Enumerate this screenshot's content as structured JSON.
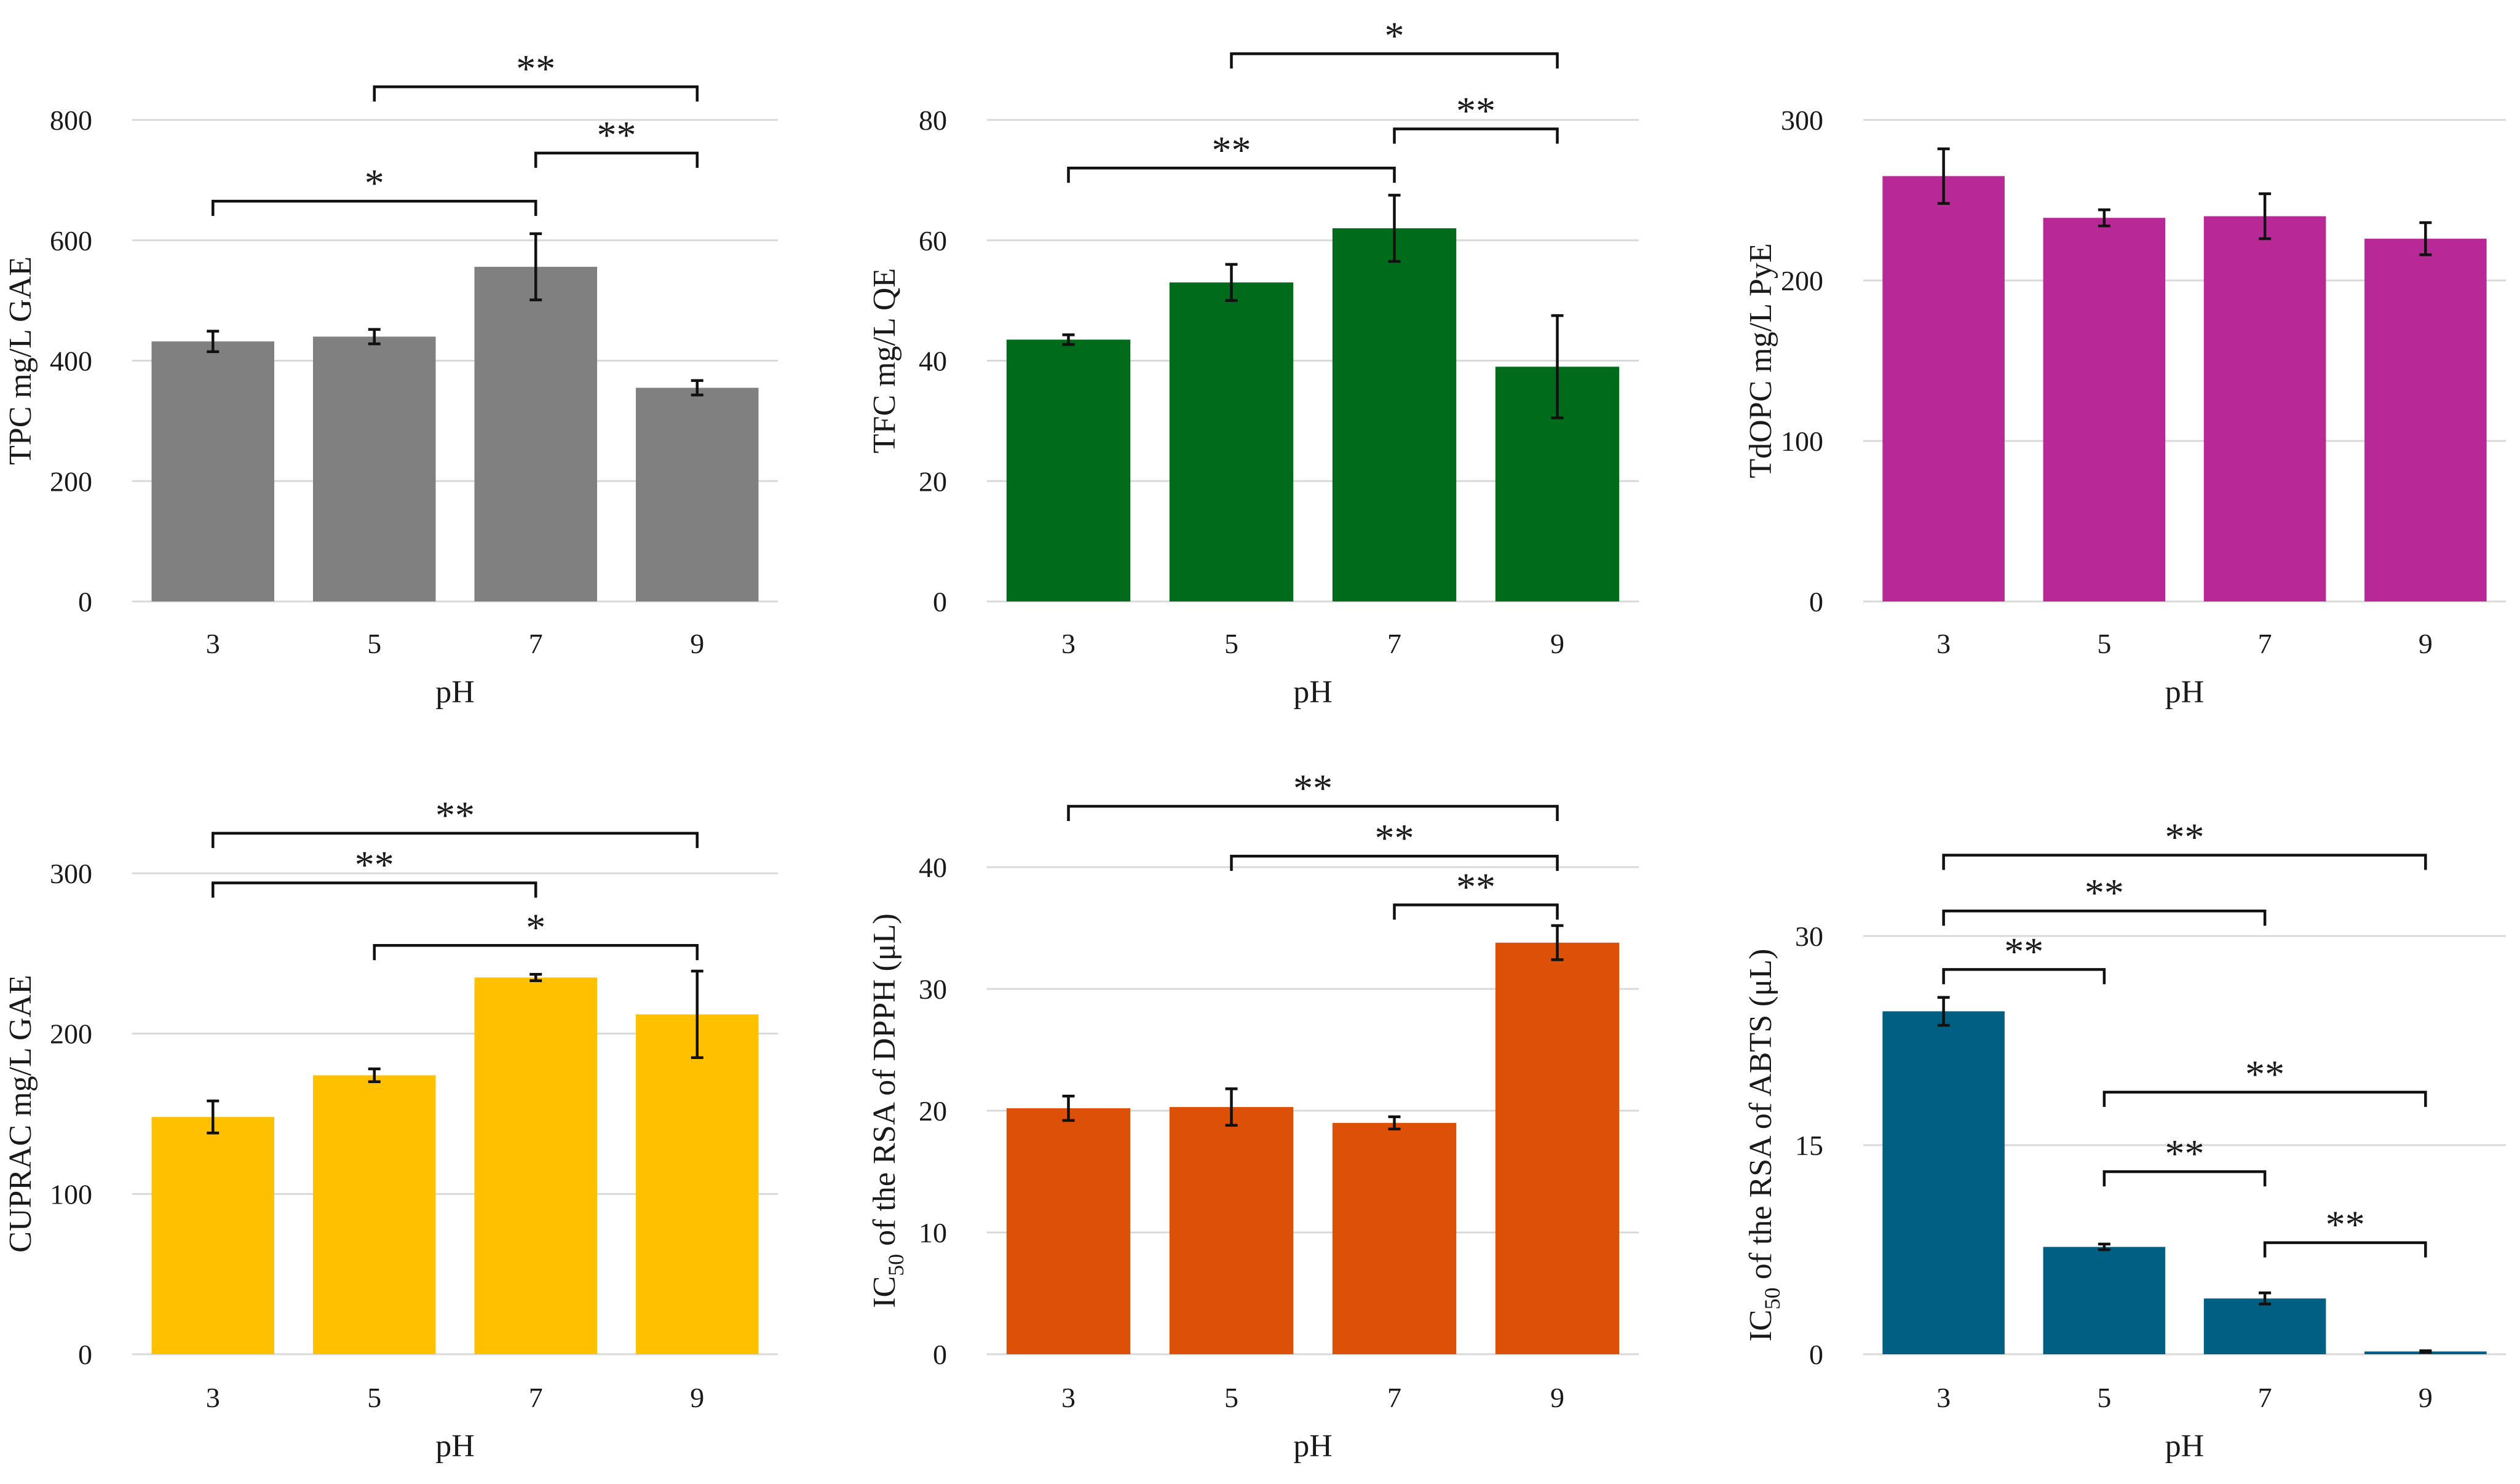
{
  "chart_data": [
    {
      "type": "bar",
      "id": "tpc",
      "color": "#808080",
      "categories": [
        "3",
        "5",
        "7",
        "9"
      ],
      "values": [
        432,
        440,
        556,
        355
      ],
      "errors": [
        17,
        12,
        55,
        12
      ],
      "xlabel": "pH",
      "ylabel": "TPC mg/L GAE",
      "ylim": [
        0,
        800
      ],
      "yticks": [
        "0",
        "200",
        "400",
        "600",
        "800"
      ],
      "ytick_values": [
        0,
        200,
        400,
        600,
        800
      ],
      "significance": [
        {
          "from": 0,
          "to": 2,
          "label": "*",
          "level": 665
        },
        {
          "from": 2,
          "to": 3,
          "label": "**",
          "level": 745
        },
        {
          "from": 1,
          "to": 3,
          "label": "**",
          "level": 855
        }
      ]
    },
    {
      "type": "bar",
      "id": "tfc",
      "color": "#006b1a",
      "categories": [
        "3",
        "5",
        "7",
        "9"
      ],
      "values": [
        43.5,
        53,
        62,
        39
      ],
      "errors": [
        0.8,
        3,
        5.5,
        8.5
      ],
      "xlabel": "pH",
      "ylabel": "TFC mg/L QE",
      "ylim": [
        0,
        80
      ],
      "yticks": [
        "0",
        "20",
        "40",
        "60",
        "80"
      ],
      "ytick_values": [
        0,
        20,
        40,
        60,
        80
      ],
      "significance": [
        {
          "from": 0,
          "to": 2,
          "label": "**",
          "level": 72
        },
        {
          "from": 2,
          "to": 3,
          "label": "**",
          "level": 78.5
        },
        {
          "from": 1,
          "to": 3,
          "label": "*",
          "level": 91
        }
      ]
    },
    {
      "type": "bar",
      "id": "tdopc",
      "color": "#b82896",
      "categories": [
        "3",
        "5",
        "7",
        "9"
      ],
      "values": [
        265,
        239,
        240,
        226
      ],
      "errors": [
        17,
        5,
        14,
        10
      ],
      "xlabel": "pH",
      "ylabel": "TdOPC mg/L PyE",
      "ylim": [
        0,
        300
      ],
      "yticks": [
        "0",
        "100",
        "200",
        "300"
      ],
      "ytick_values": [
        0,
        100,
        200,
        300
      ],
      "significance": []
    },
    {
      "type": "bar",
      "id": "cuprac",
      "color": "#ffc000",
      "categories": [
        "3",
        "5",
        "7",
        "9"
      ],
      "values": [
        148,
        174,
        235,
        212
      ],
      "errors": [
        10,
        4,
        2,
        27
      ],
      "xlabel": "pH",
      "ylabel": "CUPRAC mg/L GAE",
      "ylim": [
        0,
        300
      ],
      "yticks": [
        "0",
        "100",
        "200",
        "300"
      ],
      "ytick_values": [
        0,
        100,
        200,
        300
      ],
      "significance": [
        {
          "from": 1,
          "to": 3,
          "label": "*",
          "level": 255
        },
        {
          "from": 0,
          "to": 2,
          "label": "**",
          "level": 294
        },
        {
          "from": 0,
          "to": 3,
          "label": "**",
          "level": 325
        }
      ]
    },
    {
      "type": "bar",
      "id": "dpph",
      "color": "#dd5008",
      "categories": [
        "3",
        "5",
        "7",
        "9"
      ],
      "values": [
        20.2,
        20.3,
        19,
        33.8
      ],
      "errors": [
        1,
        1.5,
        0.5,
        1.4
      ],
      "xlabel": "pH",
      "ylabel": "IC50 of the RSA of DPPH (μL)",
      "ylabel_parts": {
        "pre": "IC",
        "sub": "50",
        "post": " of the RSA of DPPH (μL)"
      },
      "ylim": [
        0,
        40
      ],
      "yticks": [
        "0",
        "10",
        "20",
        "30",
        "40"
      ],
      "ytick_values": [
        0,
        10,
        20,
        30,
        40
      ],
      "significance": [
        {
          "from": 2,
          "to": 3,
          "label": "**",
          "level": 36.9
        },
        {
          "from": 1,
          "to": 3,
          "label": "**",
          "level": 40.9
        },
        {
          "from": 0,
          "to": 3,
          "label": "**",
          "level": 45
        }
      ]
    },
    {
      "type": "bar",
      "id": "abts",
      "color": "#005f83",
      "categories": [
        "3",
        "5",
        "7",
        "9"
      ],
      "values": [
        24.6,
        7.7,
        4,
        0.2
      ],
      "errors": [
        1,
        0.2,
        0.4,
        0.05
      ],
      "xlabel": "pH",
      "ylabel": "IC50 of the RSA of ABTS (μL)",
      "ylabel_parts": {
        "pre": "IC",
        "sub": "50",
        "post": " of the RSA of ABTS (μL)"
      },
      "ylim": [
        0,
        30
      ],
      "yticks": [
        "0",
        "15",
        "30"
      ],
      "ytick_values": [
        0,
        15,
        30
      ],
      "significance": [
        {
          "from": 2,
          "to": 3,
          "label": "**",
          "level": 8.0
        },
        {
          "from": 1,
          "to": 2,
          "label": "**",
          "level": 13.1
        },
        {
          "from": 1,
          "to": 3,
          "label": "**",
          "level": 18.8
        },
        {
          "from": 0,
          "to": 1,
          "label": "**",
          "level": 27.6
        },
        {
          "from": 0,
          "to": 2,
          "label": "**",
          "level": 31.8
        },
        {
          "from": 0,
          "to": 3,
          "label": "**",
          "level": 35.8
        }
      ]
    }
  ]
}
